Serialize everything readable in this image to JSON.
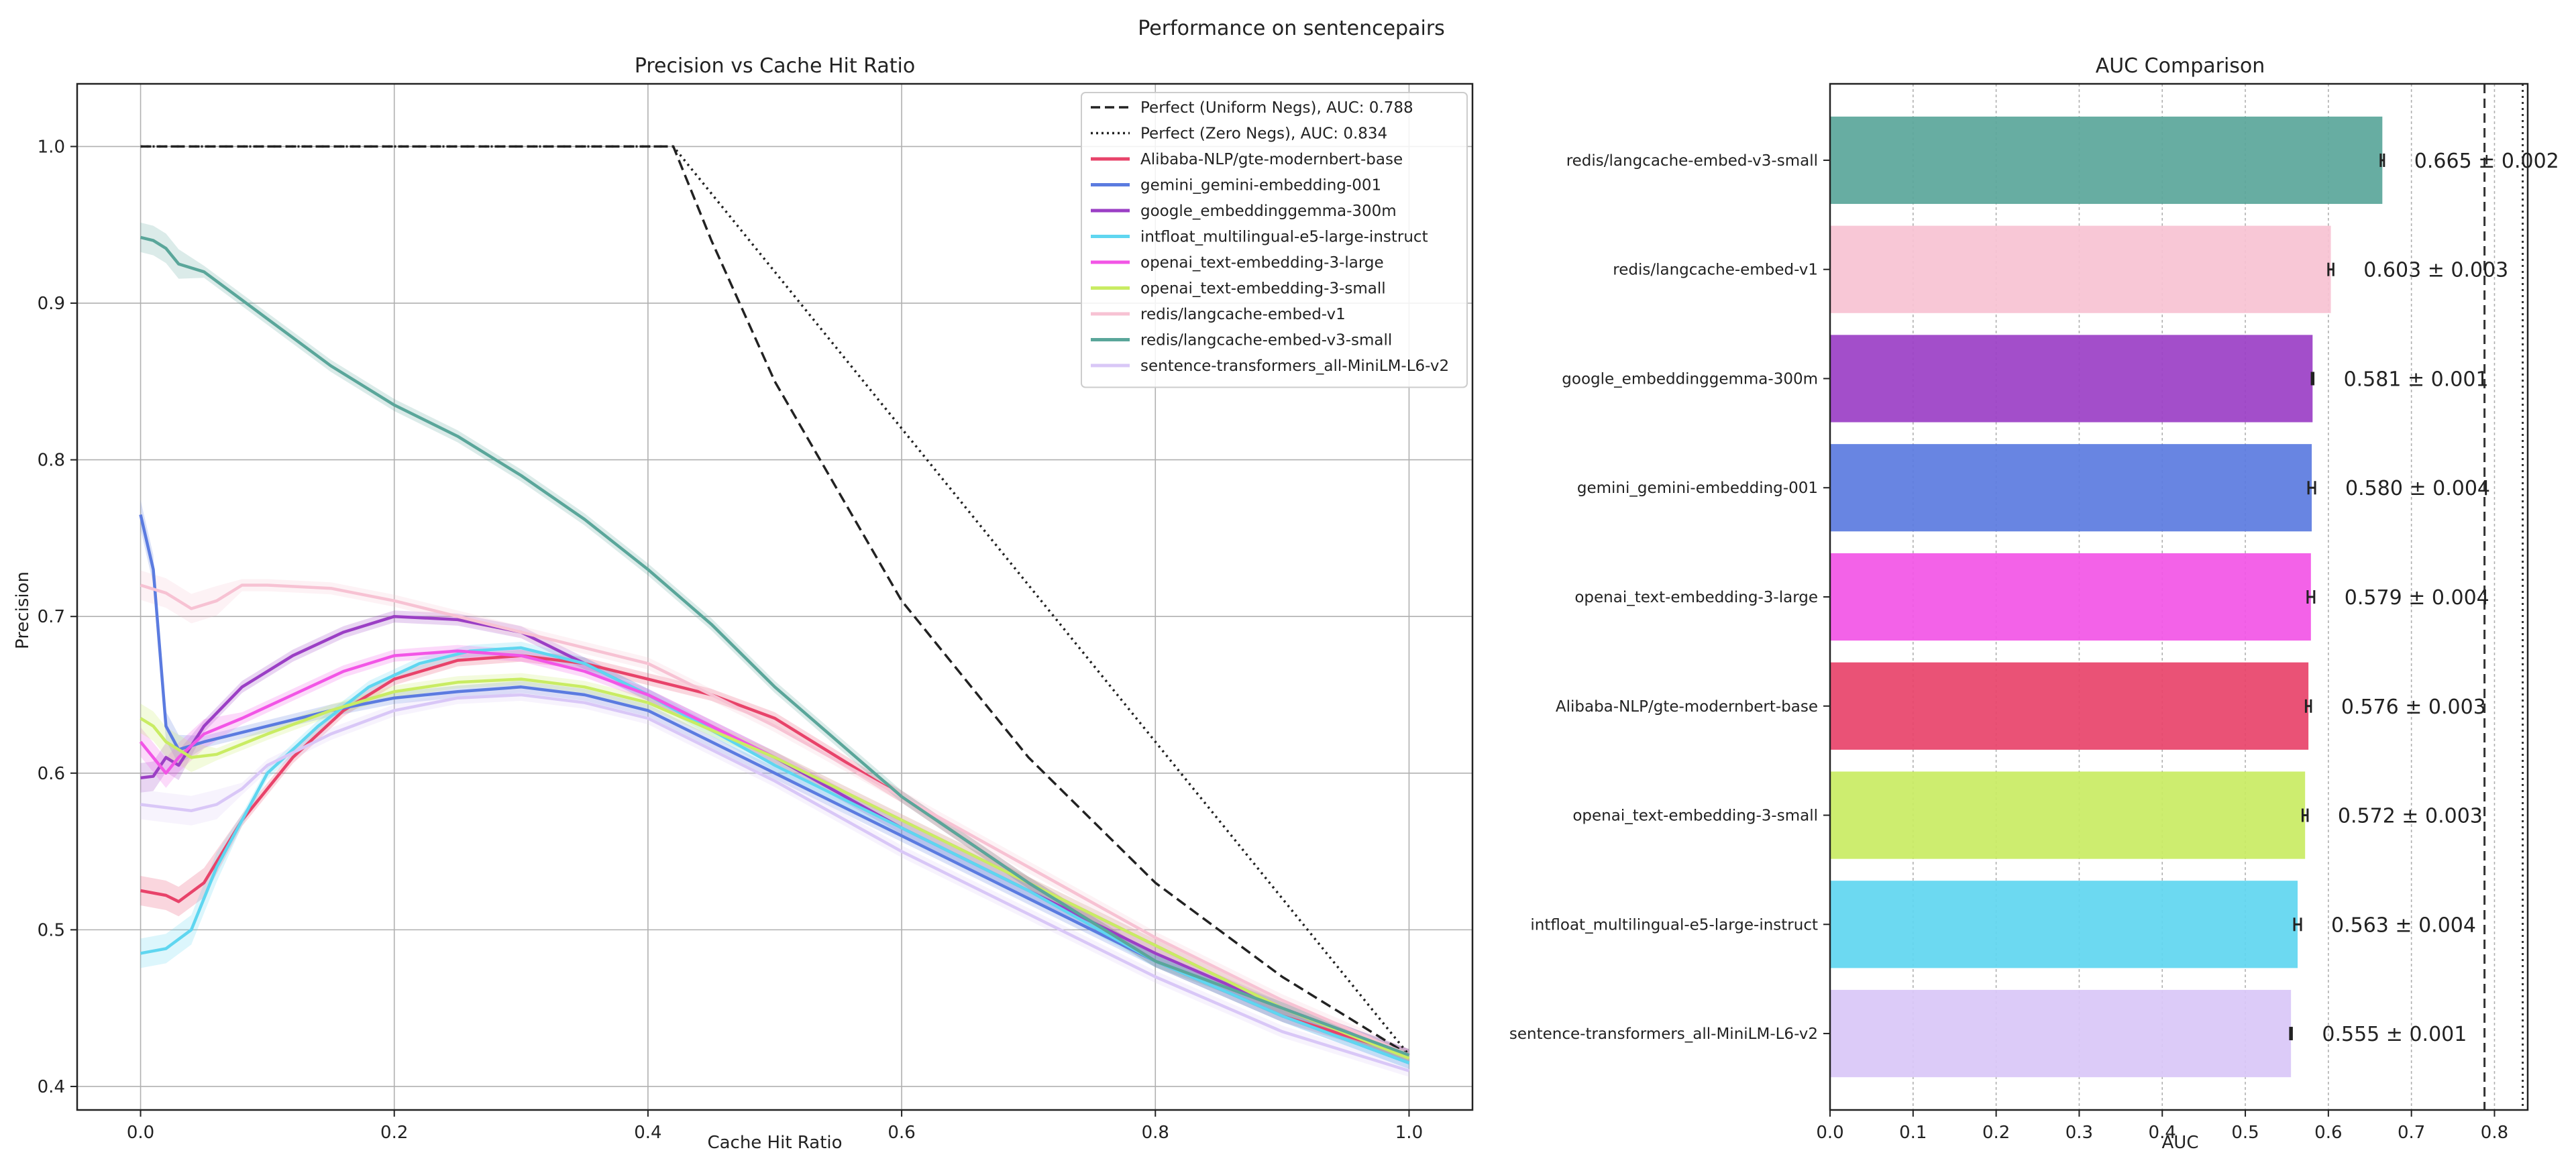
{
  "suptitle": "Performance on sentencepairs",
  "chart_data": [
    {
      "type": "line",
      "title": "Precision vs Cache Hit Ratio",
      "xlabel": "Cache Hit Ratio",
      "ylabel": "Precision",
      "xlim": [
        -0.05,
        1.05
      ],
      "ylim": [
        0.385,
        1.04
      ],
      "xticks": [
        0.0,
        0.2,
        0.4,
        0.6,
        0.8,
        1.0
      ],
      "yticks": [
        0.4,
        0.5,
        0.6,
        0.7,
        0.8,
        0.9,
        1.0
      ],
      "xtick_labels": [
        "0.0",
        "0.2",
        "0.4",
        "0.6",
        "0.8",
        "1.0"
      ],
      "ytick_labels": [
        "0.4",
        "0.5",
        "0.6",
        "0.7",
        "0.8",
        "0.9",
        "1.0"
      ],
      "grid": true,
      "legend_position": "top-right",
      "series": [
        {
          "name": "Perfect (Uniform Negs), AUC: 0.788",
          "color": "#222222",
          "style": "dashed",
          "x": [
            0,
            0.42,
            0.45,
            0.5,
            0.55,
            0.6,
            0.65,
            0.7,
            0.75,
            0.8,
            0.85,
            0.9,
            0.95,
            1.0
          ],
          "y": [
            1.0,
            1.0,
            0.94,
            0.85,
            0.78,
            0.71,
            0.66,
            0.61,
            0.57,
            0.53,
            0.5,
            0.47,
            0.445,
            0.42
          ]
        },
        {
          "name": "Perfect (Zero Negs), AUC: 0.834",
          "color": "#222222",
          "style": "dotted",
          "x": [
            0,
            0.42,
            1.0
          ],
          "y": [
            1.0,
            1.0,
            0.42
          ]
        },
        {
          "name": "Alibaba-NLP/gte-modernbert-base",
          "color": "#e8436a",
          "style": "solid",
          "x": [
            0,
            0.02,
            0.03,
            0.05,
            0.08,
            0.12,
            0.16,
            0.2,
            0.25,
            0.3,
            0.35,
            0.4,
            0.45,
            0.5,
            0.55,
            0.6,
            0.7,
            0.8,
            0.9,
            1.0
          ],
          "y": [
            0.525,
            0.522,
            0.518,
            0.53,
            0.57,
            0.61,
            0.64,
            0.66,
            0.672,
            0.675,
            0.67,
            0.66,
            0.65,
            0.635,
            0.61,
            0.585,
            0.53,
            0.48,
            0.445,
            0.42
          ]
        },
        {
          "name": "gemini_gemini-embedding-001",
          "color": "#5b7be0",
          "style": "solid",
          "x": [
            0,
            0.01,
            0.02,
            0.03,
            0.05,
            0.1,
            0.15,
            0.2,
            0.25,
            0.3,
            0.35,
            0.4,
            0.5,
            0.6,
            0.7,
            0.8,
            0.9,
            1.0
          ],
          "y": [
            0.765,
            0.73,
            0.63,
            0.615,
            0.62,
            0.63,
            0.64,
            0.648,
            0.652,
            0.655,
            0.65,
            0.64,
            0.6,
            0.56,
            0.52,
            0.48,
            0.445,
            0.415
          ]
        },
        {
          "name": "google_embeddinggemma-300m",
          "color": "#9b3fc5",
          "style": "solid",
          "x": [
            0,
            0.01,
            0.02,
            0.03,
            0.05,
            0.08,
            0.12,
            0.16,
            0.2,
            0.25,
            0.3,
            0.35,
            0.4,
            0.5,
            0.6,
            0.7,
            0.8,
            0.9,
            1.0
          ],
          "y": [
            0.597,
            0.598,
            0.61,
            0.605,
            0.63,
            0.655,
            0.675,
            0.69,
            0.7,
            0.698,
            0.69,
            0.67,
            0.65,
            0.61,
            0.565,
            0.525,
            0.485,
            0.45,
            0.42
          ]
        },
        {
          "name": "intfloat_multilingual-e5-large-instruct",
          "color": "#5fd6f0",
          "style": "solid",
          "x": [
            0,
            0.02,
            0.04,
            0.06,
            0.08,
            0.1,
            0.14,
            0.18,
            0.22,
            0.26,
            0.3,
            0.35,
            0.4,
            0.5,
            0.6,
            0.7,
            0.8,
            0.9,
            1.0
          ],
          "y": [
            0.485,
            0.488,
            0.5,
            0.54,
            0.57,
            0.6,
            0.63,
            0.655,
            0.67,
            0.678,
            0.68,
            0.67,
            0.65,
            0.605,
            0.565,
            0.525,
            0.48,
            0.445,
            0.415
          ]
        },
        {
          "name": "openai_text-embedding-3-large",
          "color": "#f255e6",
          "style": "solid",
          "x": [
            0,
            0.02,
            0.03,
            0.05,
            0.08,
            0.12,
            0.16,
            0.2,
            0.25,
            0.3,
            0.35,
            0.4,
            0.5,
            0.6,
            0.7,
            0.8,
            0.9,
            1.0
          ],
          "y": [
            0.62,
            0.6,
            0.61,
            0.625,
            0.635,
            0.65,
            0.665,
            0.675,
            0.678,
            0.675,
            0.665,
            0.65,
            0.61,
            0.57,
            0.53,
            0.49,
            0.45,
            0.42
          ]
        },
        {
          "name": "openai_text-embedding-3-small",
          "color": "#c9ec63",
          "style": "solid",
          "x": [
            0,
            0.01,
            0.02,
            0.04,
            0.06,
            0.1,
            0.15,
            0.2,
            0.25,
            0.3,
            0.35,
            0.4,
            0.5,
            0.6,
            0.7,
            0.8,
            0.9,
            1.0
          ],
          "y": [
            0.635,
            0.63,
            0.62,
            0.61,
            0.612,
            0.625,
            0.64,
            0.652,
            0.658,
            0.66,
            0.655,
            0.645,
            0.61,
            0.57,
            0.53,
            0.49,
            0.45,
            0.418
          ]
        },
        {
          "name": "redis/langcache-embed-v1",
          "color": "#f7c2d3",
          "style": "solid",
          "x": [
            0,
            0.02,
            0.04,
            0.06,
            0.08,
            0.1,
            0.15,
            0.2,
            0.25,
            0.3,
            0.35,
            0.4,
            0.5,
            0.6,
            0.7,
            0.8,
            0.9,
            1.0
          ],
          "y": [
            0.72,
            0.715,
            0.705,
            0.71,
            0.72,
            0.72,
            0.718,
            0.71,
            0.7,
            0.69,
            0.68,
            0.67,
            0.63,
            0.585,
            0.54,
            0.495,
            0.455,
            0.42
          ]
        },
        {
          "name": "redis/langcache-embed-v3-small",
          "color": "#5aa69a",
          "style": "solid",
          "x": [
            0,
            0.01,
            0.02,
            0.03,
            0.05,
            0.1,
            0.15,
            0.2,
            0.25,
            0.3,
            0.35,
            0.4,
            0.45,
            0.5,
            0.55,
            0.6,
            0.7,
            0.8,
            0.9,
            1.0
          ],
          "y": [
            0.942,
            0.94,
            0.935,
            0.925,
            0.92,
            0.89,
            0.86,
            0.835,
            0.815,
            0.79,
            0.762,
            0.73,
            0.695,
            0.655,
            0.62,
            0.585,
            0.53,
            0.48,
            0.45,
            0.42
          ]
        },
        {
          "name": "sentence-transformers_all-MiniLM-L6-v2",
          "color": "#d9c7f7",
          "style": "solid",
          "x": [
            0,
            0.02,
            0.04,
            0.06,
            0.08,
            0.1,
            0.15,
            0.2,
            0.25,
            0.3,
            0.35,
            0.4,
            0.5,
            0.6,
            0.7,
            0.8,
            0.9,
            1.0
          ],
          "y": [
            0.58,
            0.578,
            0.576,
            0.58,
            0.59,
            0.605,
            0.625,
            0.64,
            0.648,
            0.65,
            0.645,
            0.635,
            0.595,
            0.55,
            0.51,
            0.47,
            0.435,
            0.41
          ]
        }
      ]
    },
    {
      "type": "bar",
      "orientation": "horizontal",
      "title": "AUC Comparison",
      "xlabel": "AUC",
      "ylabel": "",
      "xlim": [
        0.0,
        0.84
      ],
      "xticks": [
        0.0,
        0.1,
        0.2,
        0.3,
        0.4,
        0.5,
        0.6,
        0.7,
        0.8
      ],
      "xtick_labels": [
        "0.0",
        "0.1",
        "0.2",
        "0.3",
        "0.4",
        "0.5",
        "0.6",
        "0.7",
        "0.8"
      ],
      "reference_lines": [
        {
          "value": 0.788,
          "style": "dashed"
        },
        {
          "value": 0.834,
          "style": "dotted"
        }
      ],
      "categories": [
        "redis/langcache-embed-v3-small",
        "redis/langcache-embed-v1",
        "google_embeddinggemma-300m",
        "gemini_gemini-embedding-001",
        "openai_text-embedding-3-large",
        "Alibaba-NLP/gte-modernbert-base",
        "openai_text-embedding-3-small",
        "intfloat_multilingual-e5-large-instruct",
        "sentence-transformers_all-MiniLM-L6-v2"
      ],
      "values": [
        0.665,
        0.603,
        0.581,
        0.58,
        0.579,
        0.576,
        0.572,
        0.563,
        0.555
      ],
      "errors": [
        0.002,
        0.003,
        0.001,
        0.004,
        0.004,
        0.003,
        0.003,
        0.004,
        0.001
      ],
      "value_labels": [
        "0.665 ± 0.002",
        "0.603 ± 0.003",
        "0.581 ± 0.001",
        "0.580 ± 0.004",
        "0.579 ± 0.004",
        "0.576 ± 0.003",
        "0.572 ± 0.003",
        "0.563 ± 0.004",
        "0.555 ± 0.001"
      ],
      "colors": [
        "#5aa69a",
        "#f7c2d3",
        "#9b3fc5",
        "#5b7be0",
        "#f255e6",
        "#e8436a",
        "#c9ec63",
        "#5fd6f0",
        "#d9c7f7"
      ]
    }
  ]
}
